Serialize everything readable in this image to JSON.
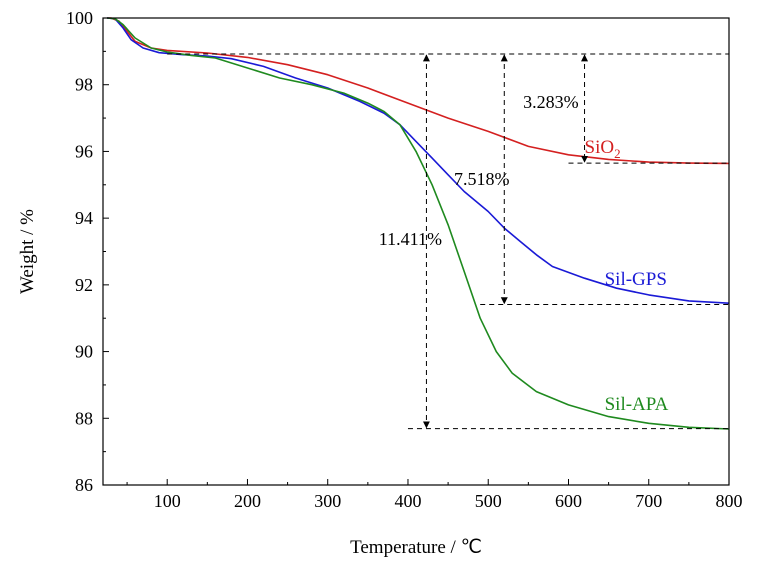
{
  "chart_data": {
    "type": "line",
    "title": "",
    "xlabel": "Temperature / ℃",
    "ylabel": "Weight / %",
    "xlim": [
      20,
      800
    ],
    "ylim": [
      86,
      100
    ],
    "xticks": [
      100,
      200,
      300,
      400,
      500,
      600,
      700,
      800
    ],
    "yticks": [
      86,
      88,
      90,
      92,
      94,
      96,
      98,
      100
    ],
    "series": [
      {
        "name": "SiO2",
        "label": "SiO",
        "label_sub": "2",
        "color": "#d42020",
        "points": [
          [
            25,
            100
          ],
          [
            30,
            100
          ],
          [
            40,
            99.9
          ],
          [
            50,
            99.6
          ],
          [
            60,
            99.3
          ],
          [
            80,
            99.1
          ],
          [
            100,
            99.03
          ],
          [
            150,
            98.95
          ],
          [
            200,
            98.82
          ],
          [
            250,
            98.6
          ],
          [
            300,
            98.3
          ],
          [
            350,
            97.9
          ],
          [
            400,
            97.45
          ],
          [
            450,
            97.0
          ],
          [
            500,
            96.6
          ],
          [
            550,
            96.15
          ],
          [
            600,
            95.9
          ],
          [
            650,
            95.76
          ],
          [
            700,
            95.68
          ],
          [
            750,
            95.65
          ],
          [
            800,
            95.64
          ]
        ]
      },
      {
        "name": "Sil-GPS",
        "label": "Sil-GPS",
        "color": "#1a1ad6",
        "points": [
          [
            25,
            100
          ],
          [
            35,
            99.98
          ],
          [
            45,
            99.7
          ],
          [
            55,
            99.35
          ],
          [
            70,
            99.1
          ],
          [
            90,
            98.96
          ],
          [
            120,
            98.9
          ],
          [
            150,
            98.86
          ],
          [
            180,
            98.78
          ],
          [
            220,
            98.55
          ],
          [
            260,
            98.2
          ],
          [
            300,
            97.9
          ],
          [
            340,
            97.5
          ],
          [
            370,
            97.15
          ],
          [
            390,
            96.8
          ],
          [
            410,
            96.3
          ],
          [
            430,
            95.8
          ],
          [
            450,
            95.3
          ],
          [
            470,
            94.8
          ],
          [
            500,
            94.2
          ],
          [
            520,
            93.7
          ],
          [
            540,
            93.3
          ],
          [
            560,
            92.9
          ],
          [
            580,
            92.55
          ],
          [
            620,
            92.2
          ],
          [
            660,
            91.9
          ],
          [
            700,
            91.7
          ],
          [
            750,
            91.52
          ],
          [
            800,
            91.45
          ]
        ]
      },
      {
        "name": "Sil-APA",
        "label": "Sil-APA",
        "color": "#1f8a1f",
        "points": [
          [
            25,
            100
          ],
          [
            35,
            99.98
          ],
          [
            45,
            99.8
          ],
          [
            60,
            99.4
          ],
          [
            80,
            99.1
          ],
          [
            100,
            98.98
          ],
          [
            130,
            98.88
          ],
          [
            160,
            98.8
          ],
          [
            200,
            98.5
          ],
          [
            240,
            98.2
          ],
          [
            280,
            98.0
          ],
          [
            320,
            97.75
          ],
          [
            350,
            97.45
          ],
          [
            370,
            97.2
          ],
          [
            390,
            96.8
          ],
          [
            410,
            96.0
          ],
          [
            430,
            95.0
          ],
          [
            450,
            93.8
          ],
          [
            470,
            92.4
          ],
          [
            490,
            91.0
          ],
          [
            510,
            90.0
          ],
          [
            530,
            89.35
          ],
          [
            560,
            88.8
          ],
          [
            600,
            88.4
          ],
          [
            650,
            88.05
          ],
          [
            700,
            87.85
          ],
          [
            750,
            87.73
          ],
          [
            800,
            87.68
          ]
        ]
      }
    ],
    "reference_lines": [
      {
        "name": "ref-initial-weight",
        "y": 98.92,
        "x_from": 100,
        "x_to": 800
      },
      {
        "name": "ref-sio2-final",
        "y": 95.65,
        "x_from": 600,
        "x_to": 800
      },
      {
        "name": "ref-sil-gps-final",
        "y": 91.41,
        "x_from": 490,
        "x_to": 800
      },
      {
        "name": "ref-sil-apa-final",
        "y": 87.69,
        "x_from": 400,
        "x_to": 800
      }
    ],
    "annotations": [
      {
        "name": "sio2-loss",
        "text": "3.283%",
        "arrow_x": 620,
        "y_top": 98.92,
        "y_bottom": 95.65,
        "label_x": 578,
        "label_y": 97.3
      },
      {
        "name": "sil-gps-loss",
        "text": "7.518%",
        "arrow_x": 520,
        "y_top": 98.92,
        "y_bottom": 91.41,
        "label_x": 492,
        "label_y": 95.0
      },
      {
        "name": "sil-apa-loss",
        "text": "11.411%",
        "arrow_x": 423,
        "y_top": 98.92,
        "y_bottom": 87.69,
        "label_x": 403,
        "label_y": 93.2
      }
    ],
    "series_label_positions": [
      {
        "series": "SiO2",
        "x": 620,
        "y": 95.95
      },
      {
        "series": "Sil-GPS",
        "x": 645,
        "y": 92.0
      },
      {
        "series": "Sil-APA",
        "x": 645,
        "y": 88.25
      }
    ]
  }
}
